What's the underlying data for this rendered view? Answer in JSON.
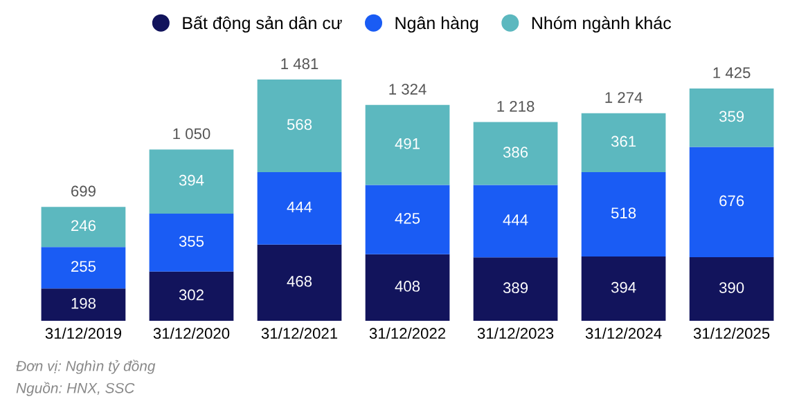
{
  "chart_data": {
    "type": "bar",
    "stacked": true,
    "data_labels": true,
    "legend": "top",
    "grid": false,
    "tick_labels": "x",
    "categories": [
      "31/12/2019",
      "31/12/2020",
      "31/12/2021",
      "31/12/2022",
      "31/12/2023",
      "31/12/2024",
      "31/12/2025"
    ],
    "series": [
      {
        "name": "Bất động sản dân cư",
        "color": "#12145c",
        "values": [
          198,
          302,
          468,
          408,
          389,
          394,
          390
        ]
      },
      {
        "name": "Ngân hàng",
        "color": "#1a5cf4",
        "values": [
          255,
          355,
          444,
          425,
          444,
          518,
          676
        ]
      },
      {
        "name": "Nhóm ngành khác",
        "color": "#5cb8bf",
        "values": [
          246,
          394,
          568,
          491,
          386,
          361,
          359
        ]
      }
    ],
    "totals": [
      "699",
      "1 050",
      "1 481",
      "1 324",
      "1 218",
      "1 274",
      "1 425"
    ],
    "annotations": [
      "Đơn vị: Nghìn tỷ đồng",
      "Nguồn: HNX, SSC"
    ]
  }
}
